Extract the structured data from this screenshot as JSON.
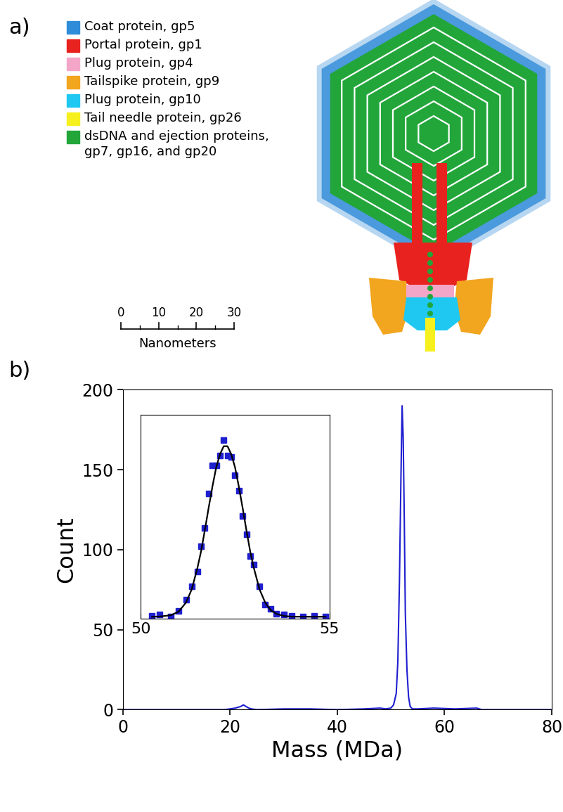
{
  "panel_a": {
    "label": "a)",
    "legend": [
      {
        "label": "Coat protein, gp5",
        "color": "#2f8cd8"
      },
      {
        "label": "Portal protein, gp1",
        "color": "#e8221e"
      },
      {
        "label": "Plug protein, gp4",
        "color": "#f4a6c8"
      },
      {
        "label": "Tailspike protein, gp9",
        "color": "#f2a51e"
      },
      {
        "label": "Plug protein, gp10",
        "color": "#1ec8f0"
      },
      {
        "label": "Tail needle protein, gp26",
        "color": "#f5f01e"
      },
      {
        "label": "dsDNA and ejection proteins,\ngp7, gp16, and gp20",
        "color": "#22a63a"
      }
    ],
    "scale_bar": {
      "ticks": [
        0,
        10,
        20,
        30
      ],
      "label": "Nanometers"
    }
  },
  "chart_data": [
    {
      "type": "line",
      "title": "b)",
      "x_label": "Mass (MDa)",
      "y_label": "Count",
      "xlim": [
        0,
        80
      ],
      "ylim": [
        0,
        200
      ],
      "xticks": [
        0,
        20,
        40,
        60,
        80
      ],
      "yticks": [
        0,
        50,
        100,
        150,
        200
      ],
      "color": "#1f1fd0",
      "line_style": "solid",
      "x": [
        0,
        19,
        20,
        21,
        22,
        22.5,
        23,
        23.5,
        24,
        25,
        30,
        35,
        40,
        45,
        48,
        49,
        50,
        50.5,
        51,
        51.3,
        51.6,
        51.9,
        52.1,
        52.3,
        52.5,
        52.7,
        53.0,
        53.3,
        53.6,
        54,
        55,
        58,
        62,
        66,
        67,
        80
      ],
      "values": [
        0,
        0,
        0.5,
        1,
        2,
        3,
        2,
        1,
        0.5,
        0,
        0.5,
        0.5,
        0,
        0.5,
        1,
        0.5,
        1,
        3,
        10,
        30,
        80,
        150,
        190,
        170,
        120,
        60,
        25,
        8,
        2,
        0.5,
        0.5,
        1,
        0.5,
        1,
        0,
        0
      ]
    },
    {
      "type": "scatter",
      "xlim": [
        50,
        55
      ],
      "ylim": [
        -2,
        200
      ],
      "xticks": [
        50,
        55
      ],
      "tick_labels": "x",
      "x": [
        50.3,
        50.5,
        50.8,
        51.0,
        51.2,
        51.35,
        51.5,
        51.6,
        51.7,
        51.8,
        51.9,
        52.0,
        52.1,
        52.2,
        52.3,
        52.4,
        52.5,
        52.6,
        52.7,
        52.8,
        52.9,
        53.0,
        53.15,
        53.3,
        53.45,
        53.6,
        53.8,
        54.0,
        54.3,
        54.6,
        54.9
      ],
      "series": [
        {
          "type": "scatter",
          "color": "#1f1fd0",
          "marker": "square",
          "values": [
            1,
            2,
            0,
            6,
            17,
            30,
            45,
            70,
            88,
            122,
            150,
            150,
            160,
            175,
            160,
            158,
            140,
            125,
            100,
            82,
            60,
            52,
            30,
            12,
            8,
            3,
            2,
            1,
            0,
            1,
            0
          ]
        },
        {
          "type": "line",
          "color": "#000000",
          "line_style": "solid",
          "values": [
            0,
            0.2,
            1.5,
            5,
            14,
            27,
            48,
            65,
            86,
            108,
            129,
            148,
            161,
            169,
            169,
            161,
            148,
            129,
            108,
            86,
            65,
            48,
            27,
            14,
            6.3,
            2.8,
            0.7,
            0.1,
            0,
            0,
            0
          ]
        }
      ]
    }
  ]
}
